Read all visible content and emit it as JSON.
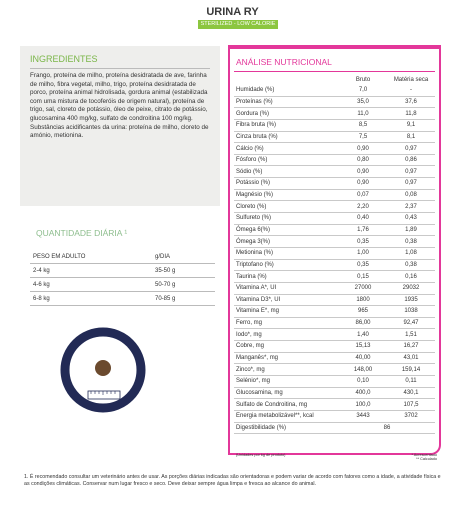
{
  "header": {
    "title": "URINA RY",
    "subtitle": "STERILIZED - LOW CALORIE"
  },
  "ingredients": {
    "title": "INGREDIENTES",
    "text": "Frango, proteína de milho, proteína desidratada de ave, farinha de milho, fibra vegetal, milho, trigo, proteína desidratada de porco, proteína animal hidrolisada, gordura animal (estabilizada com uma mistura de tocoferóis de origem natural), proteína de trigo, sal, cloreto de potássio, óleo de peixe, citrato de potássio, glucosamina 400 mg/kg, sulfato de condroitina 100 mg/kg. Substâncias acidificantes da urina: proteína de milho, cloreto de amónio, metionina."
  },
  "daily": {
    "title": "QUANTIDADE DIÁRIA ¹",
    "columns": [
      "PESO EM ADULTO",
      "g/DIA"
    ],
    "rows": [
      [
        "2-4 kg",
        "35-50 g"
      ],
      [
        "4-6 kg",
        "50-70 g"
      ],
      [
        "6-8 kg",
        "70-85 g"
      ]
    ]
  },
  "analysis": {
    "title": "ANÁLISE NUTRICIONAL",
    "columns": [
      "Bruto",
      "Matéria seca"
    ],
    "rows": [
      [
        "Humidade (%)",
        "7,0",
        "-"
      ],
      [
        "Proteínas (%)",
        "35,0",
        "37,6"
      ],
      [
        "Gordura (%)",
        "11,0",
        "11,8"
      ],
      [
        "Fibra bruta (%)",
        "8,5",
        "9,1"
      ],
      [
        "Cinza bruta (%)",
        "7,5",
        "8,1"
      ],
      [
        "Cálcio (%)",
        "0,90",
        "0,97"
      ],
      [
        "Fósforo (%)",
        "0,80",
        "0,86"
      ],
      [
        "Sódio (%)",
        "0,90",
        "0,97"
      ],
      [
        "Potássio (%)",
        "0,90",
        "0,97"
      ],
      [
        "Magnésio (%)",
        "0,07",
        "0,08"
      ],
      [
        "Cloreto (%)",
        "2,20",
        "2,37"
      ],
      [
        "Sulfureto (%)",
        "0,40",
        "0,43"
      ],
      [
        "Ómega 6(%)",
        "1,76",
        "1,89"
      ],
      [
        "Ómega 3(%)",
        "0,35",
        "0,38"
      ],
      [
        "Metionina (%)",
        "1,00",
        "1,08"
      ],
      [
        "Triptofano (%)",
        "0,35",
        "0,38"
      ],
      [
        "Taurina (%)",
        "0,15",
        "0,16"
      ],
      [
        "Vitamina A*, UI",
        "27000",
        "29032"
      ],
      [
        "Vitamina D3*, UI",
        "1800",
        "1935"
      ],
      [
        "Vitamina E*, mg",
        "965",
        "1038"
      ],
      [
        "Ferro, mg",
        "86,00",
        "92,47"
      ],
      [
        "Iodo*, mg",
        "1,40",
        "1,51"
      ],
      [
        "Cobre, mg",
        "15,13",
        "16,27"
      ],
      [
        "Manganês*, mg",
        "40,00",
        "43,01"
      ],
      [
        "Zinco*, mg",
        "148,00",
        "159,14"
      ],
      [
        "Selénio*, mg",
        "0,10",
        "0,11"
      ],
      [
        "Glucosamina, mg",
        "400,0",
        "430,1"
      ],
      [
        "Sulfato de Condroitina, mg",
        "100,0",
        "107,5"
      ],
      [
        "Energia metabolizável**, kcal",
        "3443",
        "3702"
      ]
    ],
    "digestibility": [
      "Digestibilidade (%)",
      "86"
    ],
    "units_note": "(Unidades por kg de produto)",
    "notes": [
      "* Acrescentado",
      "** Calculado"
    ]
  },
  "footnote": "1. É recomendado consultar um veterinário antes de usar. As porções diárias indicadas são orientadoras e podem variar de acordo com fatores como a idade, a atividade física e as condições climáticas. Conservar num lugar fresco e seco. Deve deixar sempre água limpa e fresca ao alcance do animal."
}
